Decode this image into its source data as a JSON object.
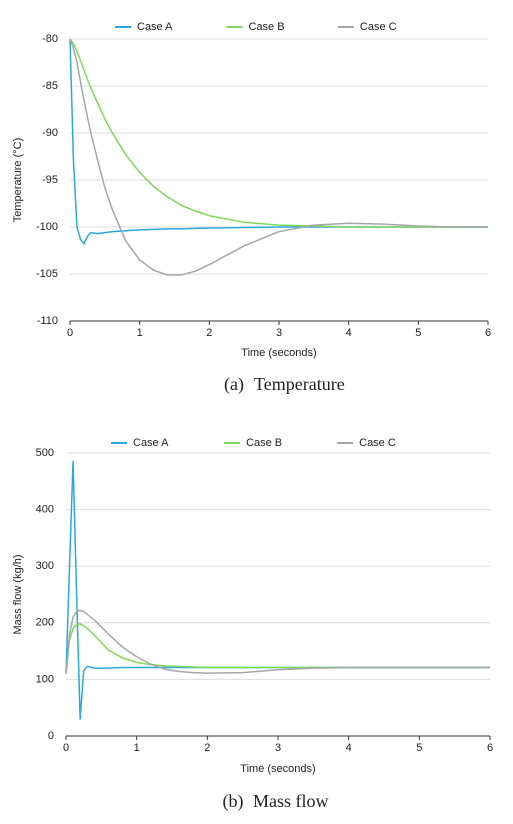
{
  "chart_data": [
    {
      "type": "line",
      "x": [
        0,
        0.05,
        0.1,
        0.15,
        0.2,
        0.25,
        0.3,
        0.4,
        0.5,
        0.6,
        0.8,
        1,
        1.2,
        1.4,
        1.6,
        1.8,
        2,
        2.5,
        3,
        3.5,
        4,
        4.5,
        5,
        5.5,
        6
      ],
      "series": [
        {
          "name": "Case A",
          "color": "#2aa8df",
          "values": [
            -80,
            -93,
            -100,
            -101.3,
            -101.8,
            -101,
            -100.6,
            -100.7,
            -100.6,
            -100.5,
            -100.4,
            -100.3,
            -100.25,
            -100.2,
            -100.2,
            -100.15,
            -100.1,
            -100.05,
            -100,
            -100,
            -100,
            -100,
            -100,
            -100,
            -100
          ]
        },
        {
          "name": "Case B",
          "color": "#7ed957",
          "values": [
            -80,
            -80.5,
            -81.3,
            -82.3,
            -83.3,
            -84.3,
            -85.2,
            -86.9,
            -88.5,
            -89.9,
            -92.3,
            -94.2,
            -95.7,
            -96.8,
            -97.7,
            -98.3,
            -98.8,
            -99.5,
            -99.8,
            -99.9,
            -100,
            -100,
            -100,
            -100,
            -100
          ]
        },
        {
          "name": "Case C",
          "color": "#a6a6a6",
          "values": [
            -80,
            -81,
            -82.5,
            -84.5,
            -86.5,
            -88.3,
            -90,
            -93,
            -95.8,
            -98,
            -101.5,
            -103.5,
            -104.6,
            -105.1,
            -105.1,
            -104.7,
            -104,
            -102,
            -100.5,
            -99.8,
            -99.6,
            -99.7,
            -99.9,
            -100,
            -100
          ]
        }
      ],
      "xlim": [
        0,
        6
      ],
      "xticks": [
        0,
        1,
        2,
        3,
        4,
        5,
        6
      ],
      "ylim": [
        -110,
        -80
      ],
      "yticks": [
        -110,
        -105,
        -100,
        -95,
        -90,
        -85,
        -80
      ],
      "x_label": "Time (seconds)",
      "y_label": "Temperature (°C)",
      "grid": true,
      "caption_number": "(a)",
      "caption": "Temperature"
    },
    {
      "type": "line",
      "x": [
        0,
        0.05,
        0.1,
        0.15,
        0.2,
        0.25,
        0.3,
        0.4,
        0.5,
        0.6,
        0.8,
        1,
        1.2,
        1.4,
        1.6,
        1.8,
        2,
        2.5,
        3,
        3.5,
        4,
        4.5,
        5,
        5.5,
        6
      ],
      "series": [
        {
          "name": "Case A",
          "color": "#2aa8df",
          "values": [
            110,
            300,
            485,
            250,
            30,
            115,
            123,
            120,
            120,
            120,
            121,
            121,
            121,
            121,
            121,
            121,
            121,
            121,
            121,
            121,
            121,
            121,
            121,
            121,
            121
          ]
        },
        {
          "name": "Case B",
          "color": "#7ed957",
          "values": [
            110,
            170,
            190,
            197,
            198,
            195,
            190,
            178,
            165,
            152,
            138,
            130,
            126,
            124,
            123,
            122,
            121,
            121,
            121,
            121,
            121,
            121,
            121,
            121,
            121
          ]
        },
        {
          "name": "Case C",
          "color": "#a6a6a6",
          "values": [
            110,
            180,
            210,
            220,
            222,
            220,
            215,
            205,
            193,
            180,
            157,
            140,
            127,
            118,
            114,
            112,
            111,
            112,
            117,
            120,
            121,
            121,
            121,
            121,
            121
          ]
        }
      ],
      "xlim": [
        0,
        6
      ],
      "xticks": [
        0,
        1,
        2,
        3,
        4,
        5,
        6
      ],
      "ylim": [
        0,
        500
      ],
      "yticks": [
        0,
        100,
        200,
        300,
        400,
        500
      ],
      "x_label": "Time (seconds)",
      "y_label": "Mass flow (kg/h)",
      "grid": true,
      "caption_number": "(b)",
      "caption": "Mass flow"
    }
  ]
}
